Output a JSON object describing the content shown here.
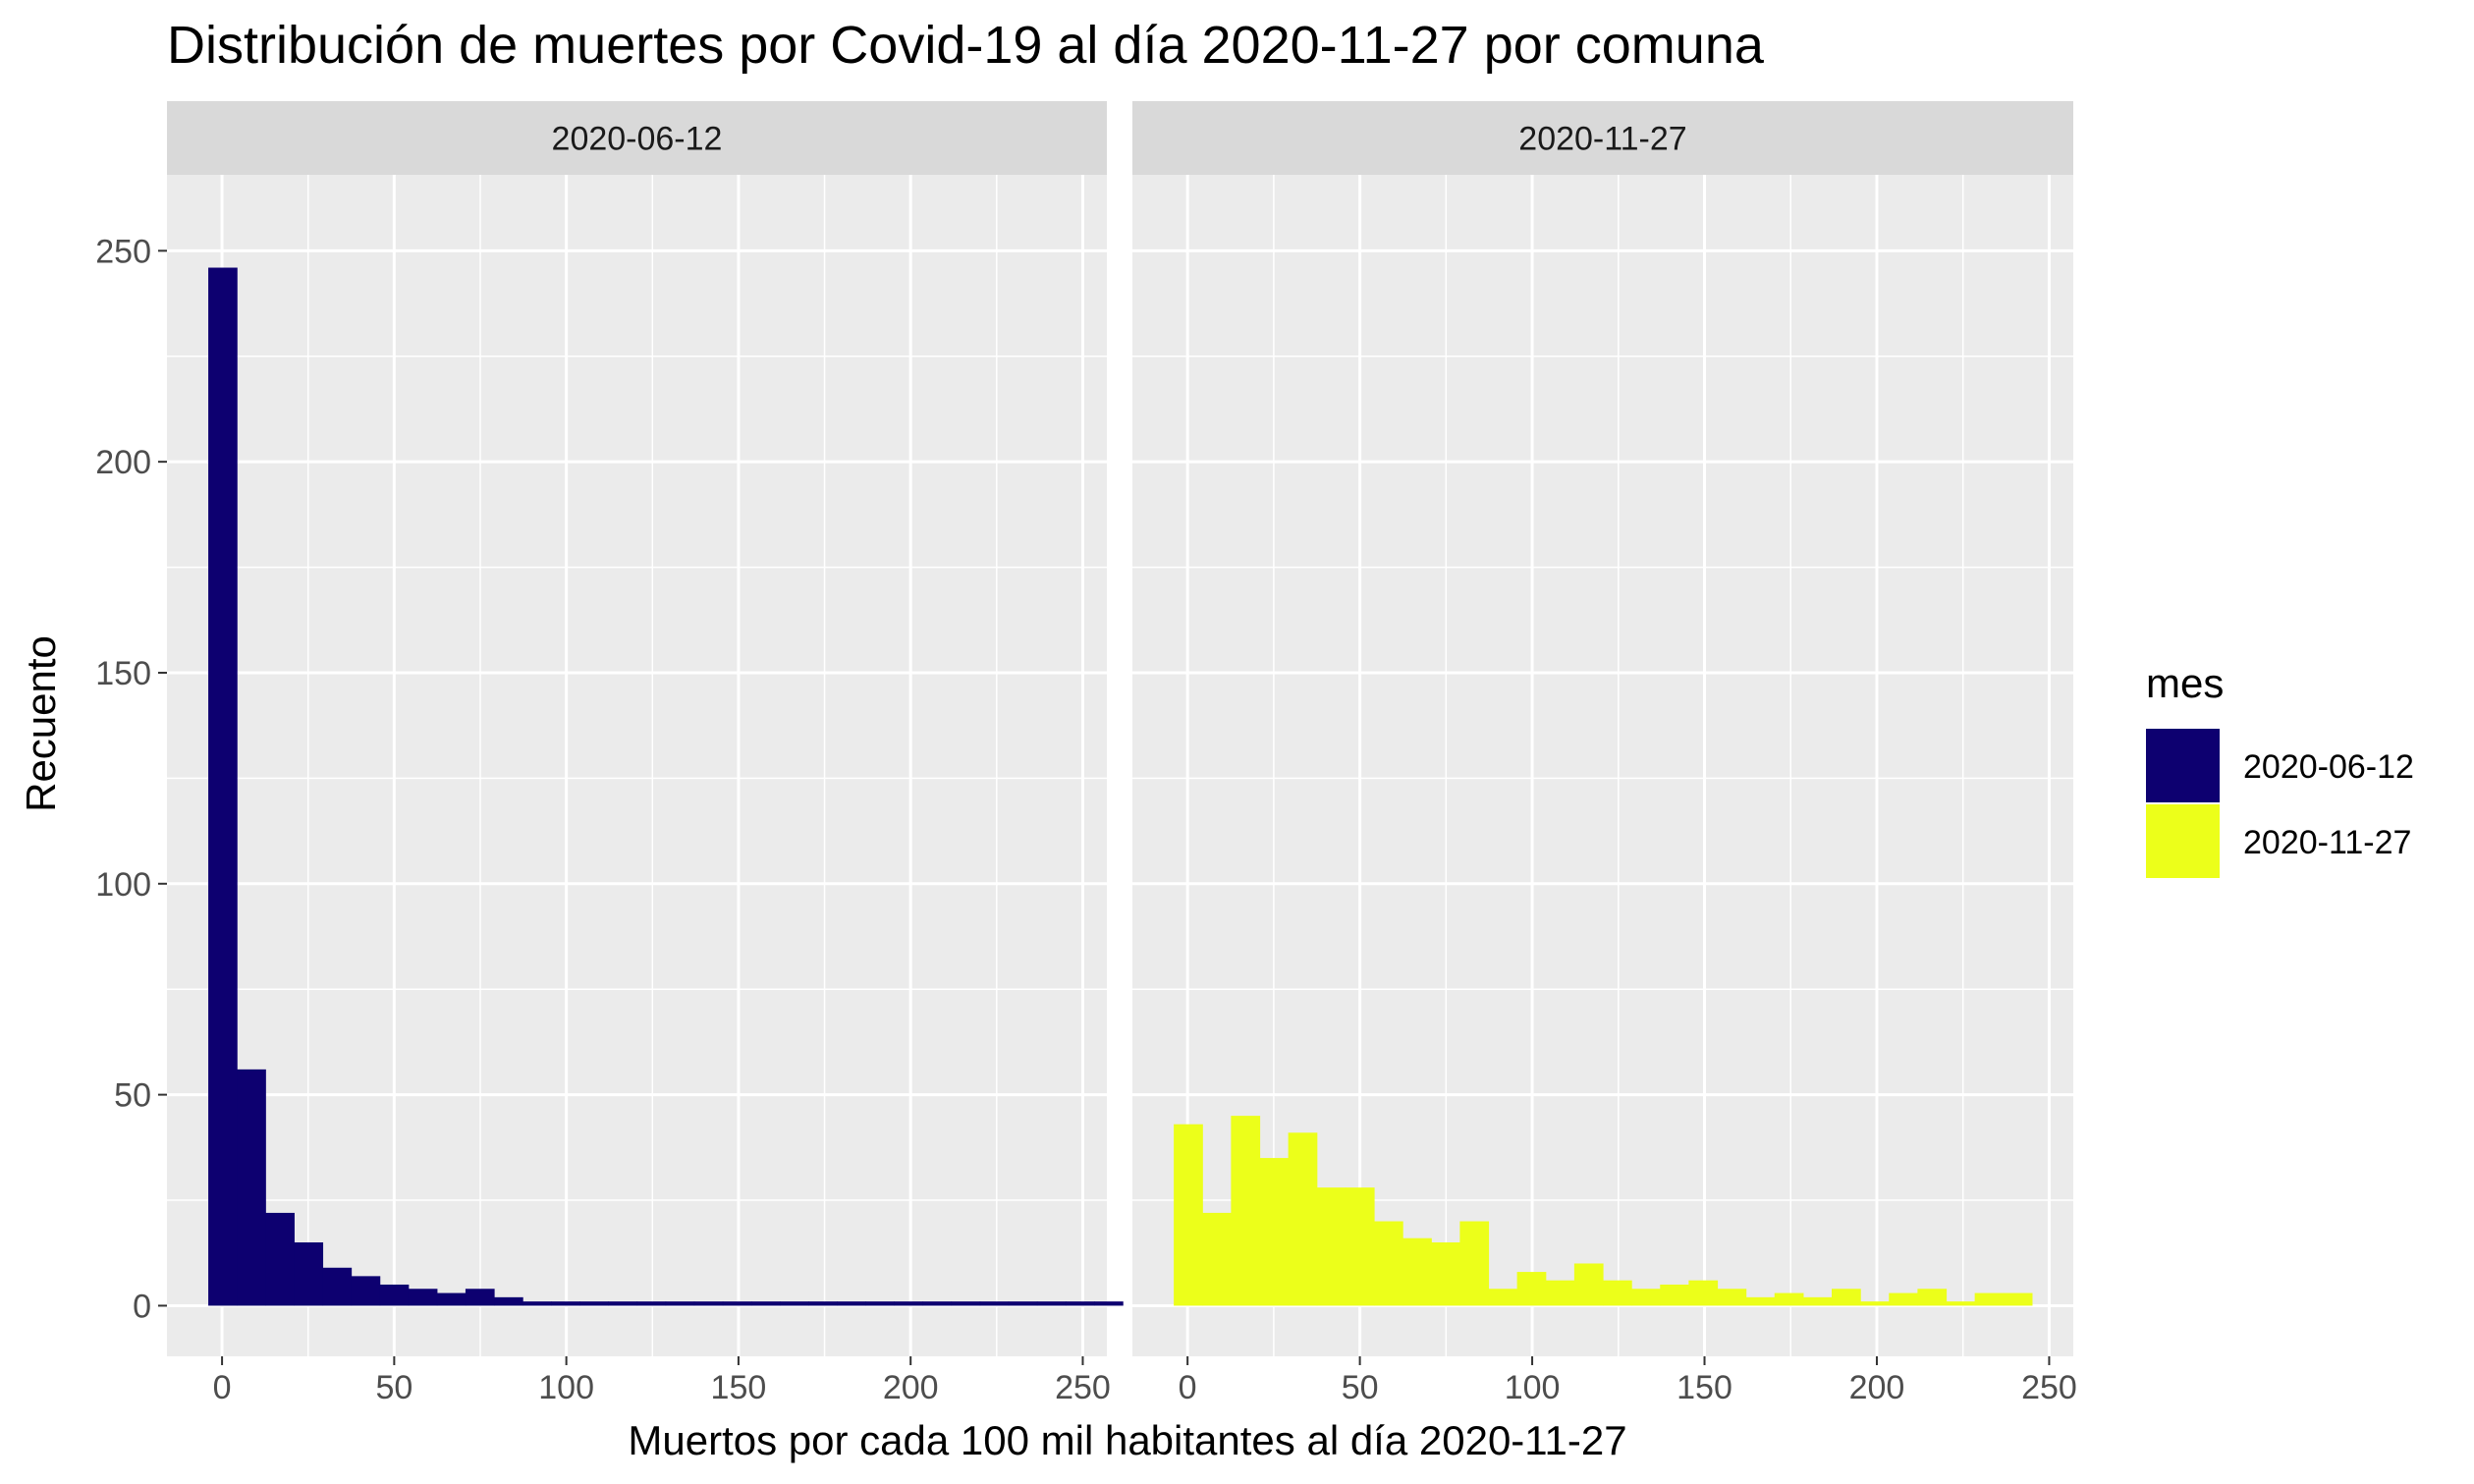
{
  "chart_data": {
    "type": "bar",
    "title": "Distribución de muertes por Covid-19 al día 2020-11-27 por comuna",
    "xlabel": "Muertos por cada 100 mil habitantes al día 2020-11-27",
    "ylabel": "Recuento",
    "xlim": [
      -16,
      257
    ],
    "ylim": [
      -12,
      268
    ],
    "x_ticks": [
      0,
      50,
      100,
      150,
      200,
      250
    ],
    "y_ticks": [
      0,
      50,
      100,
      150,
      200,
      250
    ],
    "bin_width": 8.3,
    "grid": true,
    "legend": {
      "title": "mes",
      "placement": "right",
      "entries": [
        {
          "label": "2020-06-12",
          "color": "#0d0070"
        },
        {
          "label": "2020-11-27",
          "color": "#ecff1a"
        }
      ]
    },
    "facets": [
      {
        "label": "2020-06-12",
        "color": "#0d0070",
        "bins_start": -4,
        "counts": [
          246,
          56,
          22,
          15,
          9,
          7,
          5,
          4,
          3,
          4,
          2,
          1,
          1,
          1,
          1,
          1,
          1,
          1,
          1,
          1,
          1,
          1,
          1,
          1,
          1,
          1,
          1,
          1,
          1,
          1,
          1,
          1
        ]
      },
      {
        "label": "2020-11-27",
        "color": "#ecff1a",
        "bins_start": -4,
        "counts": [
          43,
          22,
          45,
          35,
          41,
          28,
          28,
          20,
          16,
          15,
          20,
          4,
          8,
          6,
          10,
          6,
          4,
          5,
          6,
          4,
          2,
          3,
          2,
          4,
          1,
          3,
          4,
          1,
          3,
          3
        ]
      }
    ]
  }
}
